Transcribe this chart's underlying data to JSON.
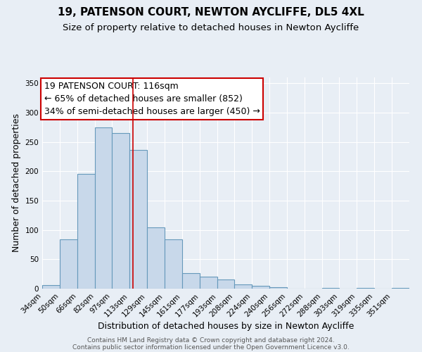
{
  "title": "19, PATENSON COURT, NEWTON AYCLIFFE, DL5 4XL",
  "subtitle": "Size of property relative to detached houses in Newton Aycliffe",
  "xlabel": "Distribution of detached houses by size in Newton Aycliffe",
  "ylabel": "Number of detached properties",
  "bin_labels": [
    "34sqm",
    "50sqm",
    "66sqm",
    "82sqm",
    "97sqm",
    "113sqm",
    "129sqm",
    "145sqm",
    "161sqm",
    "177sqm",
    "193sqm",
    "208sqm",
    "224sqm",
    "240sqm",
    "256sqm",
    "272sqm",
    "288sqm",
    "303sqm",
    "319sqm",
    "335sqm",
    "351sqm"
  ],
  "bin_edges": [
    34,
    50,
    66,
    82,
    97,
    113,
    129,
    145,
    161,
    177,
    193,
    208,
    224,
    240,
    256,
    272,
    288,
    303,
    319,
    335,
    351
  ],
  "bar_heights": [
    6,
    84,
    196,
    275,
    265,
    236,
    104,
    84,
    27,
    20,
    16,
    7,
    5,
    2,
    0,
    0,
    1,
    0,
    1,
    0,
    1
  ],
  "bar_color": "#c8d8ea",
  "bar_edge_color": "#6699bb",
  "property_value": 116,
  "vline_color": "#cc0000",
  "annotation_line1": "19 PATENSON COURT: 116sqm",
  "annotation_line2": "← 65% of detached houses are smaller (852)",
  "annotation_line3": "34% of semi-detached houses are larger (450) →",
  "annotation_box_color": "#ffffff",
  "annotation_border_color": "#cc0000",
  "ylim": [
    0,
    360
  ],
  "yticks": [
    0,
    50,
    100,
    150,
    200,
    250,
    300,
    350
  ],
  "footer1": "Contains HM Land Registry data © Crown copyright and database right 2024.",
  "footer2": "Contains public sector information licensed under the Open Government Licence v3.0.",
  "bg_color": "#e8eef5",
  "grid_color": "#ffffff",
  "title_fontsize": 11,
  "subtitle_fontsize": 9.5,
  "axis_label_fontsize": 9,
  "tick_fontsize": 7.5,
  "annotation_fontsize": 9,
  "footer_fontsize": 6.5
}
